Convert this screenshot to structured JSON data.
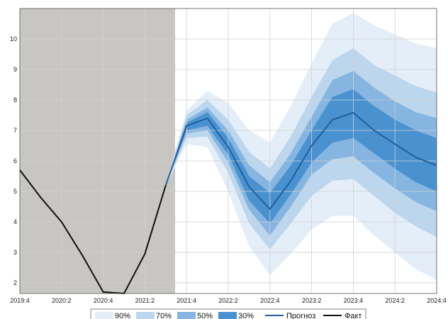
{
  "chart_data": {
    "type": "area",
    "x": [
      "2019:4",
      "2020:1",
      "2020:2",
      "2020:3",
      "2020:4",
      "2021:1",
      "2021:2",
      "2021:3",
      "2021:4",
      "2022:1",
      "2022:2",
      "2022:3",
      "2022:4",
      "2023:1",
      "2023:2",
      "2023:3",
      "2023:4",
      "2024:1",
      "2024:2",
      "2024:3",
      "2024:4"
    ],
    "x_tick_labels": [
      "2019:4",
      "2020:2",
      "2020:4",
      "2021:2",
      "2021:4",
      "2022:2",
      "2022:4",
      "2023:2",
      "2023:4",
      "2024:2",
      "2024:4"
    ],
    "ylim": [
      1.65,
      11.0
    ],
    "y_ticks": [
      2,
      3,
      4,
      5,
      6,
      7,
      8,
      9,
      10
    ],
    "shaded_history_until": "2021:3",
    "series": [
      {
        "name": "Факт",
        "color": "#111111",
        "x": [
          "2019:4",
          "2020:1",
          "2020:2",
          "2020:3",
          "2020:4",
          "2021:1",
          "2021:2",
          "2021:3"
        ],
        "values": [
          5.7,
          4.8,
          4.0,
          2.9,
          1.7,
          1.65,
          2.95,
          5.2
        ]
      },
      {
        "name": "Прогноз",
        "color": "#1f5fa0",
        "x": [
          "2021:3",
          "2021:4",
          "2022:1",
          "2022:2",
          "2022:3",
          "2022:4",
          "2023:1",
          "2023:2",
          "2023:3",
          "2023:4",
          "2024:1",
          "2024:2",
          "2024:3",
          "2024:4"
        ],
        "values": [
          5.2,
          7.15,
          7.4,
          6.45,
          5.15,
          4.42,
          5.35,
          6.5,
          7.35,
          7.58,
          7.0,
          6.55,
          6.12,
          5.85
        ]
      }
    ],
    "bands": [
      {
        "name": "90%",
        "color": "#e3eef8",
        "lower": [
          5.2,
          6.55,
          6.45,
          5.0,
          3.2,
          2.25,
          2.95,
          3.75,
          4.2,
          4.2,
          3.55,
          3.0,
          2.45,
          2.1
        ],
        "upper": [
          5.2,
          7.65,
          8.3,
          7.9,
          7.0,
          6.6,
          7.8,
          9.2,
          10.5,
          10.85,
          10.45,
          10.15,
          9.85,
          9.7
        ]
      },
      {
        "name": "70%",
        "color": "#bcd6ee",
        "lower": [
          5.2,
          6.75,
          6.8,
          5.6,
          3.95,
          3.1,
          3.95,
          4.85,
          5.35,
          5.4,
          4.85,
          4.3,
          3.85,
          3.5
        ],
        "upper": [
          5.2,
          7.5,
          8.0,
          7.35,
          6.3,
          5.75,
          6.8,
          8.1,
          9.3,
          9.7,
          9.15,
          8.8,
          8.45,
          8.25
        ]
      },
      {
        "name": "50%",
        "color": "#85b5e0",
        "lower": [
          5.2,
          6.9,
          7.0,
          5.95,
          4.4,
          3.55,
          4.5,
          5.55,
          6.05,
          6.15,
          5.6,
          5.1,
          4.65,
          4.35
        ],
        "upper": [
          5.2,
          7.35,
          7.75,
          7.0,
          5.85,
          5.3,
          6.25,
          7.45,
          8.65,
          8.95,
          8.4,
          7.95,
          7.6,
          7.4
        ]
      },
      {
        "name": "30%",
        "color": "#4a92cf",
        "lower": [
          5.2,
          7.0,
          7.15,
          6.2,
          4.7,
          3.95,
          4.9,
          5.95,
          6.6,
          6.75,
          6.25,
          5.75,
          5.3,
          5.0
        ],
        "upper": [
          5.2,
          7.25,
          7.6,
          6.75,
          5.5,
          4.95,
          5.85,
          7.0,
          8.1,
          8.35,
          7.8,
          7.35,
          7.0,
          6.75
        ]
      }
    ],
    "legend_entries": [
      "90%",
      "70%",
      "50%",
      "30%",
      "Прогноз",
      "Факт"
    ],
    "legend_position": "bottom",
    "grid": true
  },
  "colors": {
    "history_shade": "#c8c6c3",
    "grid": "#d0d0d0",
    "axes": "#555555"
  }
}
